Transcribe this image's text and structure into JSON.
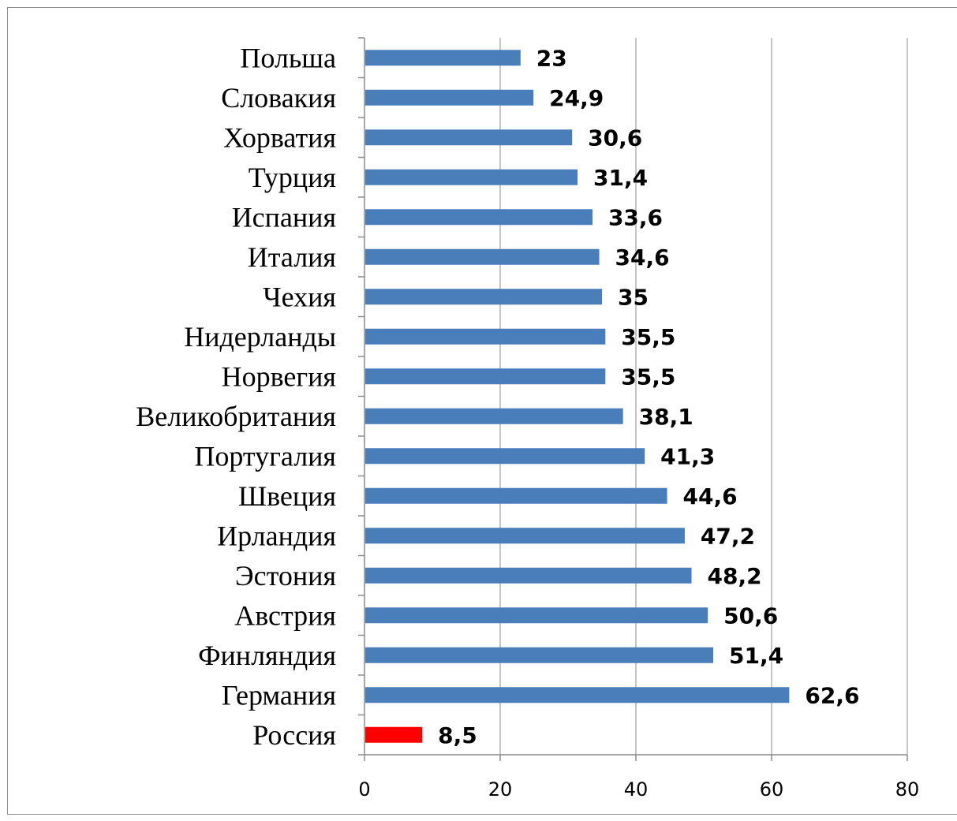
{
  "chart_data": {
    "type": "bar",
    "orientation": "horizontal",
    "title": "",
    "xlabel": "",
    "ylabel": "",
    "xlim": [
      0,
      80
    ],
    "x_ticks": [
      0,
      20,
      40,
      60,
      80
    ],
    "x_tick_labels": [
      "0",
      "20",
      "40",
      "60",
      "80"
    ],
    "grid": "vertical major gridlines",
    "legend": "none",
    "categories": [
      "Польша",
      "Словакия",
      "Хорватия",
      "Турция",
      "Испания",
      "Италия",
      "Чехия",
      "Нидерланды",
      "Норвегия",
      "Великобритания",
      "Португалия",
      "Швеция",
      "Ирландия",
      "Эстония",
      "Австрия",
      "Финляндия",
      "Германия",
      "Россия"
    ],
    "values": [
      23,
      24.9,
      30.6,
      31.4,
      33.6,
      34.6,
      35,
      35.5,
      35.5,
      38.1,
      41.3,
      44.6,
      47.2,
      48.2,
      50.6,
      51.4,
      62.6,
      8.5
    ],
    "value_labels": [
      "23",
      "24,9",
      "30,6",
      "31,4",
      "33,6",
      "34,6",
      "35",
      "35,5",
      "35,5",
      "38,1",
      "41,3",
      "44,6",
      "47,2",
      "48,2",
      "50,6",
      "51,4",
      "62,6",
      "8,5"
    ],
    "colors": {
      "default": "#4a7ebb",
      "highlight": "#ff0000",
      "highlight_category": "Россия",
      "gridline": "#b3b3b3",
      "axis": "#8c8c8c"
    }
  }
}
